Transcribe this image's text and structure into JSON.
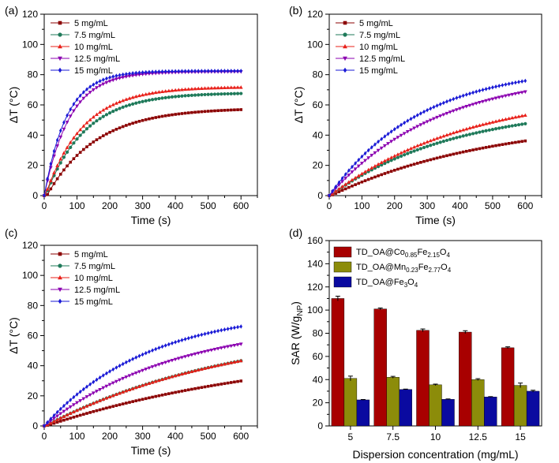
{
  "chart_data": [
    {
      "panel": "(a)",
      "type": "line",
      "xlabel": "Time (s)",
      "ylabel": "ΔT (°C)",
      "xlim": [
        0,
        650
      ],
      "ylim": [
        0,
        120
      ],
      "xticks": [
        0,
        100,
        200,
        300,
        400,
        500,
        600
      ],
      "yticks": [
        0,
        20,
        40,
        60,
        80,
        100,
        120
      ],
      "legend_position": "top-left",
      "series": [
        {
          "name": "5 mg/mL",
          "color": "#8B0000",
          "marker": "square",
          "model": {
            "A": 58,
            "tau": 150,
            "t0": 8
          }
        },
        {
          "name": "7.5 mg/mL",
          "color": "#1F7A5A",
          "marker": "circle",
          "model": {
            "A": 68,
            "tau": 120,
            "t0": 4
          }
        },
        {
          "name": "10 mg/mL",
          "color": "#E8201A",
          "marker": "triangle-up",
          "model": {
            "A": 72,
            "tau": 115,
            "t0": 3
          }
        },
        {
          "name": "12.5 mg/mL",
          "color": "#8B00B0",
          "marker": "triangle-down",
          "model": {
            "A": 82,
            "tau": 78,
            "t0": 0
          }
        },
        {
          "name": "15 mg/mL",
          "color": "#1A1AD6",
          "marker": "diamond",
          "model": {
            "A": 82.5,
            "tau": 68,
            "t0": 0
          }
        }
      ]
    },
    {
      "panel": "(b)",
      "type": "line",
      "xlabel": "Time (s)",
      "ylabel": "ΔT (°C)",
      "xlim": [
        0,
        650
      ],
      "ylim": [
        0,
        120
      ],
      "xticks": [
        0,
        100,
        200,
        300,
        400,
        500,
        600
      ],
      "yticks": [
        0,
        20,
        40,
        60,
        80,
        100,
        120
      ],
      "legend_position": "top-left",
      "series": [
        {
          "name": "5 mg/mL",
          "color": "#8B0000",
          "marker": "square",
          "model": {
            "A": 52,
            "tau": 500,
            "t0": 5
          }
        },
        {
          "name": "7.5 mg/mL",
          "color": "#1F7A5A",
          "marker": "circle",
          "model": {
            "A": 60,
            "tau": 380,
            "t0": 3
          }
        },
        {
          "name": "10 mg/mL",
          "color": "#E8201A",
          "marker": "triangle-up",
          "model": {
            "A": 70,
            "tau": 420,
            "t0": 3
          }
        },
        {
          "name": "12.5 mg/mL",
          "color": "#8B00B0",
          "marker": "triangle-down",
          "model": {
            "A": 82,
            "tau": 330,
            "t0": 0
          }
        },
        {
          "name": "15 mg/mL",
          "color": "#1A1AD6",
          "marker": "diamond",
          "model": {
            "A": 86,
            "tau": 280,
            "t0": 0
          }
        }
      ]
    },
    {
      "panel": "(c)",
      "type": "line",
      "xlabel": "Time (s)",
      "ylabel": "ΔT (°C)",
      "xlim": [
        0,
        650
      ],
      "ylim": [
        0,
        120
      ],
      "xticks": [
        0,
        100,
        200,
        300,
        400,
        500,
        600
      ],
      "yticks": [
        0,
        20,
        40,
        60,
        80,
        100,
        120
      ],
      "legend_position": "top-left",
      "series": [
        {
          "name": "5 mg/mL",
          "color": "#8B0000",
          "marker": "square",
          "model": {
            "A": 55,
            "tau": 760,
            "t0": 5
          }
        },
        {
          "name": "7.5 mg/mL",
          "color": "#1F7A5A",
          "marker": "circle",
          "model": {
            "A": 68,
            "tau": 590,
            "t0": 3
          }
        },
        {
          "name": "10 mg/mL",
          "color": "#E8201A",
          "marker": "triangle-up",
          "model": {
            "A": 68,
            "tau": 590,
            "t0": 3
          }
        },
        {
          "name": "12.5 mg/mL",
          "color": "#8B00B0",
          "marker": "triangle-down",
          "model": {
            "A": 70,
            "tau": 400,
            "t0": 0
          }
        },
        {
          "name": "15 mg/mL",
          "color": "#1A1AD6",
          "marker": "diamond",
          "model": {
            "A": 78,
            "tau": 320,
            "t0": 0
          }
        }
      ]
    },
    {
      "panel": "(d)",
      "type": "bar",
      "xlabel": "Dispersion concentration (mg/mL)",
      "ylabel": "SAR (W/gNP)",
      "ylabel_main": "SAR (W/g",
      "ylabel_sub": "NP",
      "ylabel_close": ")",
      "categories": [
        "5",
        "7.5",
        "10",
        "12.5",
        "15"
      ],
      "ylim": [
        0,
        160
      ],
      "yticks": [
        0,
        20,
        40,
        60,
        80,
        100,
        120,
        140,
        160
      ],
      "legend_position": "top-left",
      "series": [
        {
          "name": "TD_OA@Co0.85Fe2.15O4",
          "label_parts": [
            [
              "TD_OA@Co",
              ""
            ],
            [
              "0.85",
              "sub"
            ],
            [
              "Fe",
              ""
            ],
            [
              "2.15",
              "sub"
            ],
            [
              "O",
              ""
            ],
            [
              "4",
              "sub"
            ]
          ],
          "color": "#A80000",
          "values": [
            110,
            101,
            82.5,
            81,
            67.5
          ],
          "errors": [
            2,
            0.8,
            1.2,
            1.2,
            0.8
          ]
        },
        {
          "name": "TD_OA@Mn0.23Fe2.77O4",
          "label_parts": [
            [
              "TD_OA@Mn",
              ""
            ],
            [
              "0.23",
              "sub"
            ],
            [
              "Fe",
              ""
            ],
            [
              "2.77",
              "sub"
            ],
            [
              "O",
              ""
            ],
            [
              "4",
              "sub"
            ]
          ],
          "color": "#8C8C0A",
          "values": [
            41,
            42,
            35.5,
            40,
            35
          ],
          "errors": [
            2,
            0.8,
            0.6,
            0.8,
            2
          ]
        },
        {
          "name": "TD_OA@Fe3O4",
          "label_parts": [
            [
              "TD_OA@Fe",
              ""
            ],
            [
              "3",
              "sub"
            ],
            [
              "O",
              ""
            ],
            [
              "4",
              "sub"
            ]
          ],
          "color": "#0A0AA0",
          "values": [
            22.5,
            31.5,
            23,
            25,
            30
          ],
          "errors": [
            0.3,
            0.3,
            0.3,
            0.3,
            0.8
          ]
        }
      ]
    }
  ]
}
